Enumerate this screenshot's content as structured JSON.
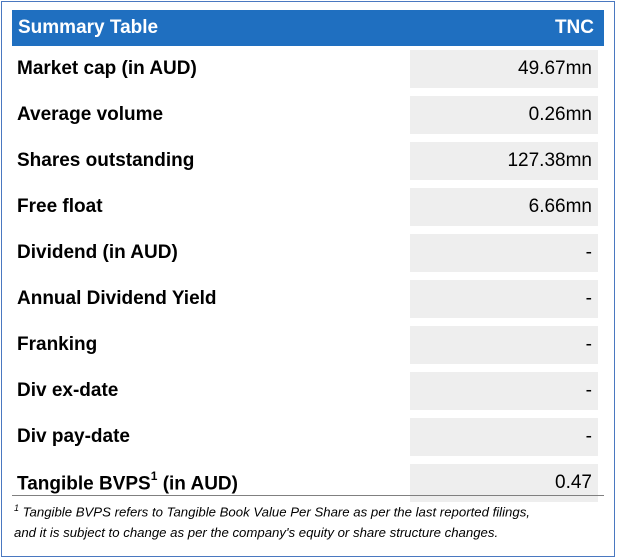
{
  "header": {
    "title": "Summary Table",
    "ticker": "TNC"
  },
  "rows": [
    {
      "label": "Market cap (in AUD)",
      "value": "49.67mn"
    },
    {
      "label": "Average volume",
      "value": "0.26mn"
    },
    {
      "label": "Shares outstanding",
      "value": "127.38mn"
    },
    {
      "label": "Free float",
      "value": "6.66mn"
    },
    {
      "label": "Dividend (in AUD)",
      "value": "-"
    },
    {
      "label": "Annual Dividend Yield",
      "value": "-"
    },
    {
      "label": "Franking",
      "value": "-"
    },
    {
      "label": "Div ex-date",
      "value": "-"
    },
    {
      "label": "Div pay-date",
      "value": "-"
    },
    {
      "label_main": "Tangible BVPS",
      "label_sup": "1",
      "label_suffix": " (in AUD)",
      "value": "0.47"
    }
  ],
  "footnote": {
    "marker": "1",
    "line1": " Tangible BVPS refers to Tangible Book Value Per Share as per the last reported filings,",
    "line2": "and it is subject to change as per the company's equity or share structure changes."
  },
  "colors": {
    "header_bg": "#1f6fc0",
    "header_text": "#ffffff",
    "value_bg": "#eeeeee",
    "border": "#4a78c0"
  }
}
